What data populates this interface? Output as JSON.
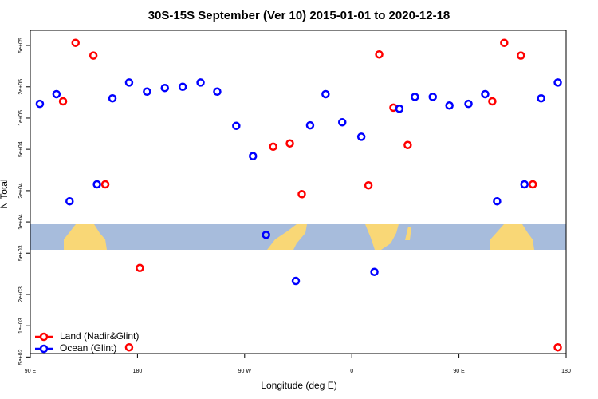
{
  "chart_data": {
    "type": "scatter",
    "title": "30S-15S September (Ver 10)   2015-01-01 to 2020-12-18",
    "x_label": "Longitude (deg E)",
    "y_label": "N Total",
    "xlim": [
      90,
      540
    ],
    "ylim": [
      540,
      700000
    ],
    "log_y": true,
    "legend": "bottom left",
    "xticks": [
      {
        "value": 90,
        "label": "90 E"
      },
      {
        "value": 180,
        "label": "180"
      },
      {
        "value": 270,
        "label": "90 W"
      },
      {
        "value": 360,
        "label": "0"
      },
      {
        "value": 450,
        "label": "90 E"
      },
      {
        "value": 540,
        "label": "180"
      }
    ],
    "yticks": [
      {
        "value": 500,
        "label": "5e+02"
      },
      {
        "value": 1000,
        "label": "1e+03"
      },
      {
        "value": 2000,
        "label": "2e+03"
      },
      {
        "value": 5000,
        "label": "5e+03"
      },
      {
        "value": 10000,
        "label": "1e+04"
      },
      {
        "value": 20000,
        "label": "2e+04"
      },
      {
        "value": 50000,
        "label": "5e+04"
      },
      {
        "value": 100000,
        "label": "1e+05"
      },
      {
        "value": 200000,
        "label": "2e+05"
      },
      {
        "value": 500000,
        "label": "5e+05"
      }
    ],
    "series": [
      {
        "name": "Land (Nadir&Glint)",
        "color": "#ff0000",
        "x": [
          117.5,
          128,
          143,
          153,
          182,
          173,
          294,
          308,
          318,
          374,
          383,
          395,
          407,
          478,
          488,
          502,
          512,
          533
        ],
        "values": [
          145000,
          530000,
          400000,
          23000,
          3600,
          620,
          53000,
          57000,
          18500,
          22500,
          410000,
          126000,
          55000,
          145000,
          530000,
          400000,
          23000,
          620
        ]
      },
      {
        "name": "Ocean (Glint)",
        "color": "#0000ff",
        "x": [
          98,
          112,
          123,
          146,
          159,
          173,
          188,
          203,
          218,
          233,
          247,
          263,
          277,
          288,
          313,
          325,
          338,
          352,
          368,
          379,
          400,
          413,
          428,
          442,
          458,
          472,
          482,
          505,
          519,
          533
        ],
        "values": [
          137000,
          170000,
          15800,
          23000,
          155000,
          220000,
          180000,
          195000,
          200000,
          220000,
          180000,
          84000,
          43000,
          7500,
          2700,
          85000,
          170000,
          91000,
          66000,
          3300,
          123000,
          160000,
          160000,
          132000,
          137000,
          170000,
          15800,
          23000,
          155000,
          220000
        ]
      }
    ]
  }
}
